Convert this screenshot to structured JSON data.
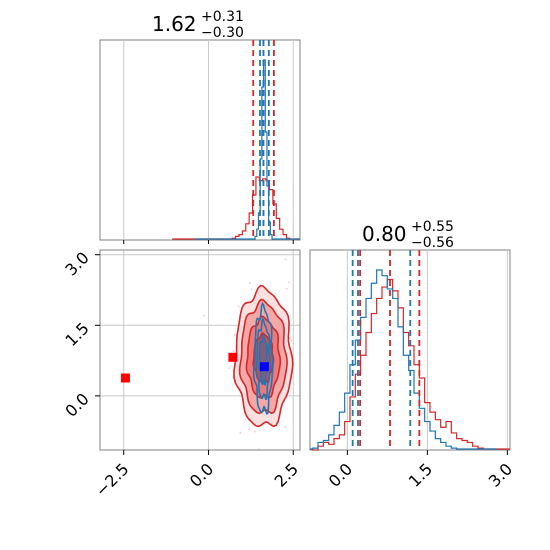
{
  "colors": {
    "red": "#d62728",
    "blue": "#1f77b4",
    "grid": "#c8c8c8",
    "axis": "#808080",
    "red_fill": "#f08080"
  },
  "chart_data": [
    {
      "type": "histogram",
      "panel": "top-left",
      "title_value": "1.62",
      "title_plus": "+0.31",
      "title_minus": "−0.30",
      "xlim": [
        -3.2,
        2.7
      ],
      "quantiles_red": [
        1.32,
        1.62,
        1.93
      ],
      "quantiles_blue": [
        1.52,
        1.62,
        1.78
      ],
      "series": [
        {
          "color": "red",
          "bins": [
            [
              0.75,
              0.01
            ],
            [
              0.85,
              0.02
            ],
            [
              0.95,
              0.03
            ],
            [
              1.05,
              0.05
            ],
            [
              1.15,
              0.09
            ],
            [
              1.25,
              0.15
            ],
            [
              1.35,
              0.25
            ],
            [
              1.45,
              0.35
            ],
            [
              1.55,
              0.33
            ],
            [
              1.65,
              0.34
            ],
            [
              1.75,
              0.33
            ],
            [
              1.85,
              0.28
            ],
            [
              1.95,
              0.2
            ],
            [
              2.05,
              0.12
            ],
            [
              2.15,
              0.06
            ],
            [
              2.25,
              0.03
            ],
            [
              2.35,
              0.01
            ],
            [
              2.45,
              0.005
            ]
          ]
        },
        {
          "color": "blue",
          "bins": [
            [
              1.4,
              0.02
            ],
            [
              1.45,
              0.06
            ],
            [
              1.5,
              0.15
            ],
            [
              1.55,
              0.45
            ],
            [
              1.6,
              0.85
            ],
            [
              1.65,
              1.0
            ],
            [
              1.7,
              0.6
            ],
            [
              1.75,
              0.3
            ],
            [
              1.8,
              0.1
            ],
            [
              1.85,
              0.03
            ]
          ]
        }
      ]
    },
    {
      "type": "histogram",
      "panel": "bottom-right",
      "title_value": "0.80",
      "title_plus": "+0.55",
      "title_minus": "−0.56",
      "xlim": [
        -0.7,
        3.05
      ],
      "xticks": [
        "0.0",
        "1.5",
        "3.0"
      ],
      "xtick_values": [
        0.0,
        1.5,
        3.0
      ],
      "quantiles_red": [
        0.24,
        0.8,
        1.35
      ],
      "quantiles_blue": [
        0.1,
        0.2,
        1.18
      ],
      "series": [
        {
          "color": "red",
          "bins": [
            [
              -0.6,
              0.0
            ],
            [
              -0.5,
              0.02
            ],
            [
              -0.4,
              0.04
            ],
            [
              -0.3,
              0.03
            ],
            [
              -0.2,
              0.06
            ],
            [
              -0.1,
              0.08
            ],
            [
              0.0,
              0.15
            ],
            [
              0.1,
              0.28
            ],
            [
              0.2,
              0.4
            ],
            [
              0.3,
              0.5
            ],
            [
              0.4,
              0.62
            ],
            [
              0.5,
              0.72
            ],
            [
              0.6,
              0.8
            ],
            [
              0.7,
              0.86
            ],
            [
              0.8,
              0.9
            ],
            [
              0.9,
              0.84
            ],
            [
              1.0,
              0.75
            ],
            [
              1.1,
              0.62
            ],
            [
              1.2,
              0.55
            ],
            [
              1.3,
              0.45
            ],
            [
              1.4,
              0.38
            ],
            [
              1.5,
              0.25
            ],
            [
              1.6,
              0.2
            ],
            [
              1.7,
              0.16
            ],
            [
              1.8,
              0.12
            ],
            [
              1.9,
              0.15
            ],
            [
              2.0,
              0.09
            ],
            [
              2.1,
              0.06
            ],
            [
              2.2,
              0.05
            ],
            [
              2.3,
              0.04
            ],
            [
              2.4,
              0.02
            ],
            [
              2.5,
              0.01
            ]
          ]
        },
        {
          "color": "blue",
          "bins": [
            [
              -0.6,
              0.01
            ],
            [
              -0.5,
              0.04
            ],
            [
              -0.4,
              0.05
            ],
            [
              -0.3,
              0.08
            ],
            [
              -0.2,
              0.13
            ],
            [
              -0.1,
              0.2
            ],
            [
              0.0,
              0.3
            ],
            [
              0.1,
              0.45
            ],
            [
              0.2,
              0.58
            ],
            [
              0.3,
              0.7
            ],
            [
              0.4,
              0.8
            ],
            [
              0.5,
              0.88
            ],
            [
              0.6,
              0.95
            ],
            [
              0.7,
              0.92
            ],
            [
              0.8,
              0.85
            ],
            [
              0.9,
              0.8
            ],
            [
              1.0,
              0.65
            ],
            [
              1.1,
              0.5
            ],
            [
              1.2,
              0.42
            ],
            [
              1.3,
              0.3
            ],
            [
              1.4,
              0.22
            ],
            [
              1.5,
              0.15
            ],
            [
              1.6,
              0.1
            ],
            [
              1.7,
              0.06
            ],
            [
              1.8,
              0.04
            ],
            [
              1.9,
              0.02
            ],
            [
              2.0,
              0.01
            ]
          ]
        }
      ]
    },
    {
      "type": "contour-scatter",
      "panel": "bottom-left",
      "xlim": [
        -3.2,
        2.7
      ],
      "ylim": [
        -1.15,
        3.1
      ],
      "xticks": [
        "−2.5",
        "0.0",
        "2.5"
      ],
      "xtick_values": [
        -2.5,
        0.0,
        2.5
      ],
      "yticks": [
        "0.0",
        "1.5",
        "3.0"
      ],
      "ytick_values": [
        0.0,
        1.5,
        3.0
      ],
      "red_markers": [
        {
          "x": -2.45,
          "y": 0.38
        },
        {
          "x": 0.72,
          "y": 0.82
        }
      ],
      "blue_marker": {
        "x": 1.65,
        "y": 0.62
      },
      "red_contour": {
        "cx": 1.62,
        "cy": 0.8,
        "sx": 0.32,
        "sy": 0.56
      },
      "blue_contour": {
        "cx": 1.62,
        "cy": 0.75,
        "sx": 0.12,
        "sy": 0.5
      }
    }
  ]
}
